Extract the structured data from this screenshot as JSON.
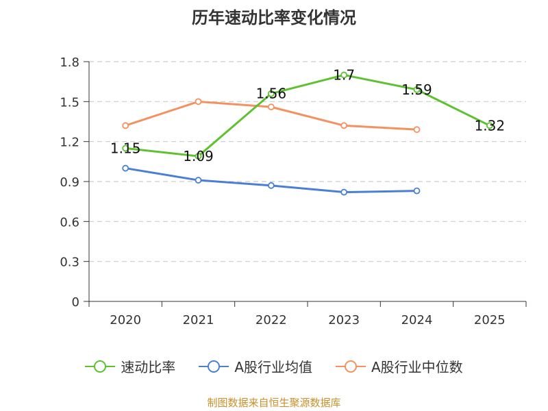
{
  "chart_data": {
    "type": "line",
    "title": "历年速动比率变化情况",
    "categories": [
      "2020",
      "2021",
      "2022",
      "2023",
      "2024",
      "2025"
    ],
    "ylim": [
      0,
      1.8
    ],
    "yticks": [
      "0",
      "0.3",
      "0.6",
      "0.9",
      "1.2",
      "1.5",
      "1.8"
    ],
    "grid": true,
    "legend_position": "bottom",
    "series": [
      {
        "name": "速动比率",
        "color": "#5ec130",
        "values": [
          1.15,
          1.09,
          1.56,
          1.7,
          1.59,
          1.32
        ],
        "labels": [
          "1.15",
          "1.09",
          "1.56",
          "1.7",
          "1.59",
          "1.32"
        ]
      },
      {
        "name": "A股行业均值",
        "color": "#4a7fd6",
        "values": [
          1.0,
          0.91,
          0.87,
          0.82,
          0.83,
          null
        ]
      },
      {
        "name": "A股行业中位数",
        "color": "#f5915e",
        "values": [
          1.32,
          1.5,
          1.46,
          1.32,
          1.29,
          null
        ]
      }
    ],
    "source": "制图数据来自恒生聚源数据库"
  }
}
